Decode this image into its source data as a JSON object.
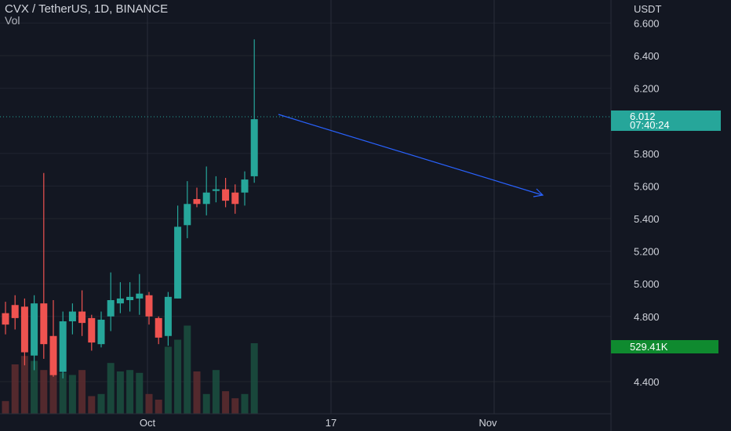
{
  "header": {
    "title": "CVX / TetherUS, 1D, BINANCE",
    "indicator": "Vol"
  },
  "price_axis": {
    "currency": "USDT",
    "ticks": [
      "6.600",
      "6.400",
      "6.200",
      "6.012",
      "5.800",
      "5.600",
      "5.400",
      "5.200",
      "5.000",
      "4.800",
      "4.400"
    ]
  },
  "last_price": {
    "price": "6.012",
    "countdown": "07:40:24",
    "color": "#26a69a"
  },
  "volume_label": {
    "value": "529.41K",
    "color": "#0f8a2f"
  },
  "time_axis": {
    "labels": [
      "Oct",
      "17",
      "Nov"
    ]
  },
  "colors": {
    "background": "#131722",
    "up": "#26a69a",
    "down": "#ef5350",
    "drawing_arrow": "#2962ff",
    "grid": "#2a2e39"
  },
  "chart_data": {
    "type": "candlestick",
    "symbol": "CVX / TetherUS",
    "interval": "1D",
    "exchange": "BINANCE",
    "ylim": [
      4.2,
      6.72
    ],
    "y_ticks": [
      4.4,
      4.8,
      5.0,
      5.2,
      5.4,
      5.6,
      5.8,
      6.2,
      6.4,
      6.6
    ],
    "last_price": 6.012,
    "candles": [
      {
        "o": 4.82,
        "h": 4.89,
        "l": 4.69,
        "c": 4.75
      },
      {
        "o": 4.87,
        "h": 4.93,
        "l": 4.72,
        "c": 4.79
      },
      {
        "o": 4.86,
        "h": 4.91,
        "l": 4.5,
        "c": 4.58
      },
      {
        "o": 4.56,
        "h": 4.93,
        "l": 4.47,
        "c": 4.88
      },
      {
        "o": 4.88,
        "h": 5.68,
        "l": 4.54,
        "c": 4.63
      },
      {
        "o": 4.68,
        "h": 4.9,
        "l": 4.43,
        "c": 4.44
      },
      {
        "o": 4.46,
        "h": 4.83,
        "l": 4.42,
        "c": 4.77
      },
      {
        "o": 4.77,
        "h": 4.88,
        "l": 4.69,
        "c": 4.83
      },
      {
        "o": 4.83,
        "h": 4.96,
        "l": 4.68,
        "c": 4.76
      },
      {
        "o": 4.79,
        "h": 4.81,
        "l": 4.59,
        "c": 4.64
      },
      {
        "o": 4.63,
        "h": 4.83,
        "l": 4.61,
        "c": 4.78
      },
      {
        "o": 4.8,
        "h": 5.07,
        "l": 4.71,
        "c": 4.9
      },
      {
        "o": 4.88,
        "h": 5.01,
        "l": 4.82,
        "c": 4.91
      },
      {
        "o": 4.9,
        "h": 5.01,
        "l": 4.83,
        "c": 4.92
      },
      {
        "o": 4.91,
        "h": 5.06,
        "l": 4.81,
        "c": 4.94
      },
      {
        "o": 4.93,
        "h": 4.95,
        "l": 4.75,
        "c": 4.8
      },
      {
        "o": 4.79,
        "h": 4.8,
        "l": 4.63,
        "c": 4.67
      },
      {
        "o": 4.68,
        "h": 4.95,
        "l": 4.62,
        "c": 4.92
      },
      {
        "o": 4.91,
        "h": 5.48,
        "l": 4.91,
        "c": 5.35
      },
      {
        "o": 5.36,
        "h": 5.63,
        "l": 5.28,
        "c": 5.49
      },
      {
        "o": 5.52,
        "h": 5.59,
        "l": 5.47,
        "c": 5.49
      },
      {
        "o": 5.49,
        "h": 5.72,
        "l": 5.42,
        "c": 5.56
      },
      {
        "o": 5.57,
        "h": 5.66,
        "l": 5.5,
        "c": 5.58
      },
      {
        "o": 5.58,
        "h": 5.65,
        "l": 5.47,
        "c": 5.51
      },
      {
        "o": 5.56,
        "h": 5.61,
        "l": 5.43,
        "c": 5.49
      },
      {
        "o": 5.56,
        "h": 5.69,
        "l": 5.48,
        "c": 5.64
      },
      {
        "o": 5.66,
        "h": 6.5,
        "l": 5.62,
        "c": 6.01
      }
    ],
    "volume": [
      18,
      70,
      82,
      75,
      62,
      60,
      58,
      55,
      62,
      25,
      28,
      72,
      60,
      62,
      58,
      28,
      20,
      95,
      105,
      125,
      60,
      28,
      62,
      32,
      22,
      28,
      100
    ]
  }
}
